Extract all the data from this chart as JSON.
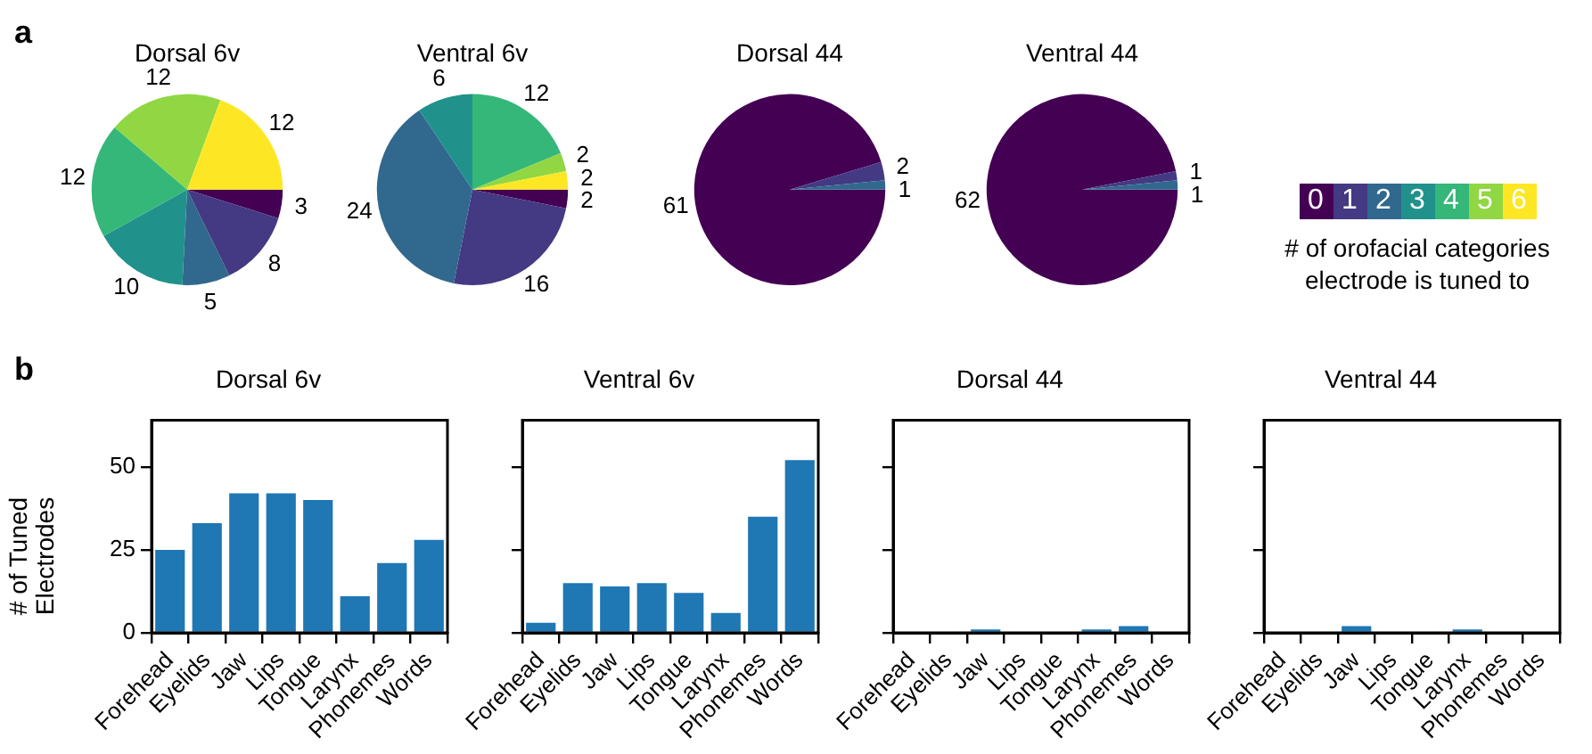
{
  "chart_data": [
    {
      "type": "pie",
      "title": "Dorsal 6v",
      "categories": [
        null,
        null,
        null,
        null,
        null,
        null,
        null
      ],
      "values": [
        3,
        8,
        5,
        10,
        12,
        12,
        12
      ],
      "colors": [
        "#440154",
        "#443983",
        "#31688e",
        "#21918c",
        "#35b779",
        "#90d743",
        "#fde725"
      ],
      "data_labels": true,
      "annotations": [
        "a"
      ]
    },
    {
      "type": "pie",
      "title": "Ventral 6v",
      "categories": [
        null,
        null,
        null,
        null,
        null,
        null,
        null
      ],
      "values": [
        2,
        16,
        24,
        6,
        12,
        2,
        2
      ],
      "colors": [
        "#440154",
        "#443983",
        "#31688e",
        "#21918c",
        "#35b779",
        "#90d743",
        "#fde725"
      ],
      "data_labels": true
    },
    {
      "type": "pie",
      "title": "Dorsal 44",
      "categories": [
        null,
        null,
        null,
        null,
        null,
        null,
        null
      ],
      "values": [
        61,
        2,
        1,
        0,
        0,
        0,
        0
      ],
      "value_labels": [
        "61",
        "2",
        "1",
        null,
        null,
        null,
        null
      ],
      "colors": [
        "#440154",
        "#443983",
        "#31688e",
        "#21918c",
        "#35b779",
        "#90d743",
        "#fde725"
      ]
    },
    {
      "type": "pie",
      "title": "Ventral 44",
      "categories": [
        "0",
        "1",
        "2",
        "3",
        "4",
        "5",
        "6"
      ],
      "values": [
        62,
        1,
        1,
        0,
        0,
        0,
        0
      ],
      "value_labels": [
        "62",
        "1",
        "1",
        null,
        null,
        null,
        null
      ],
      "colors": [
        "#440154",
        "#443983",
        "#31688e",
        "#21918c",
        "#35b779",
        "#90d743",
        "#fde725"
      ],
      "legend": "right",
      "legend_title": "# of orofacial categories electrode is tuned to"
    },
    {
      "type": "bar",
      "title": "Dorsal 6v",
      "categories": [
        "Forehead",
        "Eyelids",
        "Jaw",
        "Lips",
        "Tongue",
        "Larynx",
        "Phonemes",
        "Words"
      ],
      "values": [
        25,
        33,
        42,
        42,
        40,
        11,
        21,
        28
      ],
      "color": "#1f77b4",
      "ylim": [
        0,
        64
      ],
      "yticks": [
        0,
        25,
        50
      ],
      "ylabel": "# of Tuned Electrodes",
      "grid": false,
      "annotations": [
        "b"
      ]
    },
    {
      "type": "bar",
      "title": "Ventral 6v",
      "categories": [
        "Forehead",
        "Eyelids",
        "Jaw",
        "Lips",
        "Tongue",
        "Larynx",
        "Phonemes",
        "Words"
      ],
      "values": [
        3,
        15,
        14,
        15,
        12,
        6,
        35,
        52
      ],
      "color": "#1f77b4",
      "ylim": [
        0,
        64
      ],
      "yticks": [
        0,
        25,
        50
      ],
      "grid": false,
      "tick_labels": "x"
    },
    {
      "type": "bar",
      "title": "Dorsal 44",
      "categories": [
        "Forehead",
        "Eyelids",
        "Jaw",
        "Lips",
        "Tongue",
        "Larynx",
        "Phonemes",
        "Words"
      ],
      "values": [
        0,
        0,
        1,
        0,
        0,
        1,
        2,
        0
      ],
      "color": "#1f77b4",
      "ylim": [
        0,
        64
      ],
      "yticks": [
        0,
        25,
        50
      ],
      "grid": false,
      "tick_labels": "x"
    },
    {
      "type": "bar",
      "title": "Ventral 44",
      "categories": [
        "Forehead",
        "Eyelids",
        "Jaw",
        "Lips",
        "Tongue",
        "Larynx",
        "Phonemes",
        "Words"
      ],
      "values": [
        0,
        0,
        2,
        0,
        0,
        1,
        0,
        0
      ],
      "color": "#1f77b4",
      "ylim": [
        0,
        64
      ],
      "yticks": [
        0,
        25,
        50
      ],
      "grid": false,
      "tick_labels": "x"
    }
  ]
}
